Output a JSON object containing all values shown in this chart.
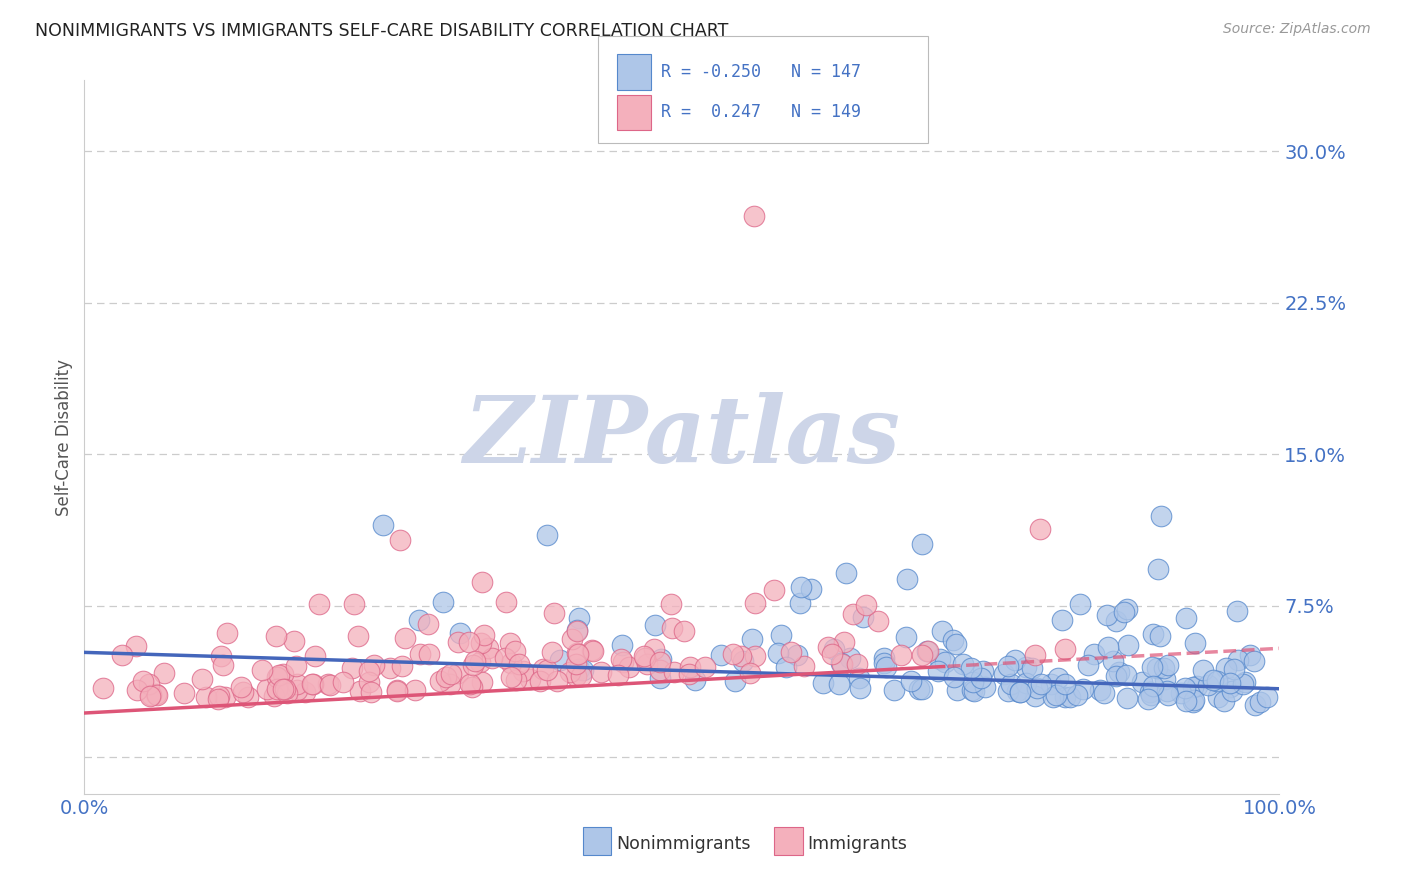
{
  "title": "NONIMMIGRANTS VS IMMIGRANTS SELF-CARE DISABILITY CORRELATION CHART",
  "source": "Source: ZipAtlas.com",
  "ylabel": "Self-Care Disability",
  "xlim": [
    0.0,
    1.0
  ],
  "ylim": [
    -0.018,
    0.335
  ],
  "yticks": [
    0.0,
    0.075,
    0.15,
    0.225,
    0.3
  ],
  "ytick_labels": [
    "",
    "7.5%",
    "15.0%",
    "22.5%",
    "30.0%"
  ],
  "xtick_labels": [
    "0.0%",
    "100.0%"
  ],
  "nonimmigrant_R": -0.25,
  "nonimmigrant_N": 147,
  "immigrant_R": 0.247,
  "immigrant_N": 149,
  "blue_fill": "#aec6e8",
  "blue_edge": "#5588cc",
  "pink_fill": "#f4b0bc",
  "pink_edge": "#dd6688",
  "blue_line": "#4466bb",
  "pink_line": "#dd5577",
  "watermark_color": "#cdd5e8",
  "bg_color": "#ffffff",
  "grid_color": "#cccccc",
  "title_color": "#222222",
  "axis_label_color": "#555555",
  "tick_color": "#4472c4",
  "legend_color": "#4472c4"
}
